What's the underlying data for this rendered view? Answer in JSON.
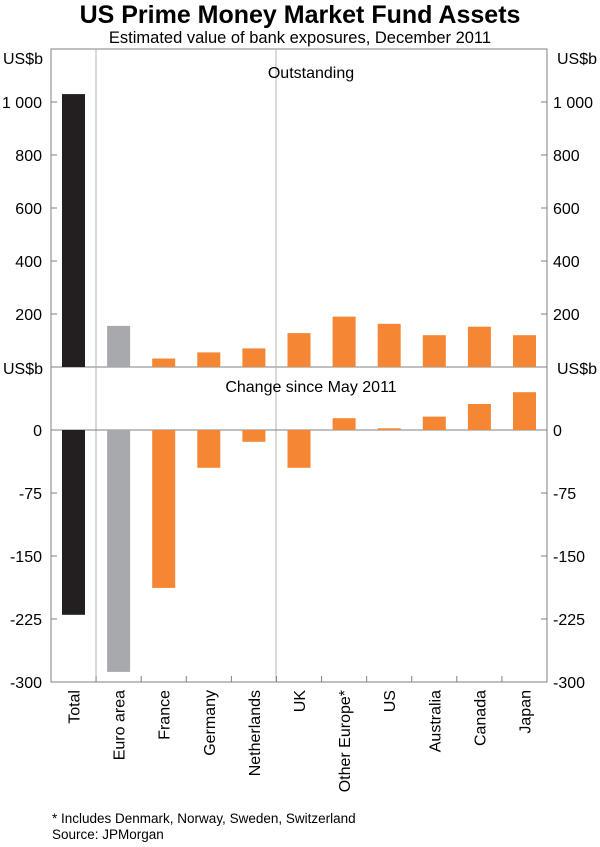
{
  "title": "US Prime Money Market Fund Assets",
  "subtitle": "Estimated value of bank exposures, December 2011",
  "footnote": "*    Includes Denmark, Norway, Sweden, Switzerland",
  "source": "Source: JPMorgan",
  "colors": {
    "total": "#231f20",
    "euro_area": "#a7a9ac",
    "country": "#f58634",
    "frame": "#808080"
  },
  "chart_data": [
    {
      "type": "bar",
      "title": "Outstanding",
      "ylabel": "US$b",
      "ylim": [
        0,
        1200
      ],
      "yticks": [
        200,
        400,
        600,
        800,
        1000
      ],
      "ytick_labels": [
        "200",
        "400",
        "600",
        "800",
        "1 000"
      ],
      "categories": [
        "Total",
        "Euro area",
        "France",
        "Germany",
        "Netherlands",
        "UK",
        "Other Europe*",
        "US",
        "Australia",
        "Canada",
        "Japan"
      ],
      "values": [
        1030,
        155,
        32,
        55,
        70,
        128,
        190,
        163,
        120,
        152,
        120
      ]
    },
    {
      "type": "bar",
      "title": "Change since May 2011",
      "ylabel": "US$b",
      "ylim": [
        -300,
        75
      ],
      "yticks": [
        -300,
        -225,
        -150,
        -75,
        0
      ],
      "ytick_labels": [
        "-300",
        "-225",
        "-150",
        "-75",
        "0"
      ],
      "categories": [
        "Total",
        "Euro area",
        "France",
        "Germany",
        "Netherlands",
        "UK",
        "Other Europe*",
        "US",
        "Australia",
        "Canada",
        "Japan"
      ],
      "values": [
        -220,
        -288,
        -188,
        -45,
        -14,
        -45,
        14,
        2,
        16,
        31,
        45
      ]
    }
  ]
}
